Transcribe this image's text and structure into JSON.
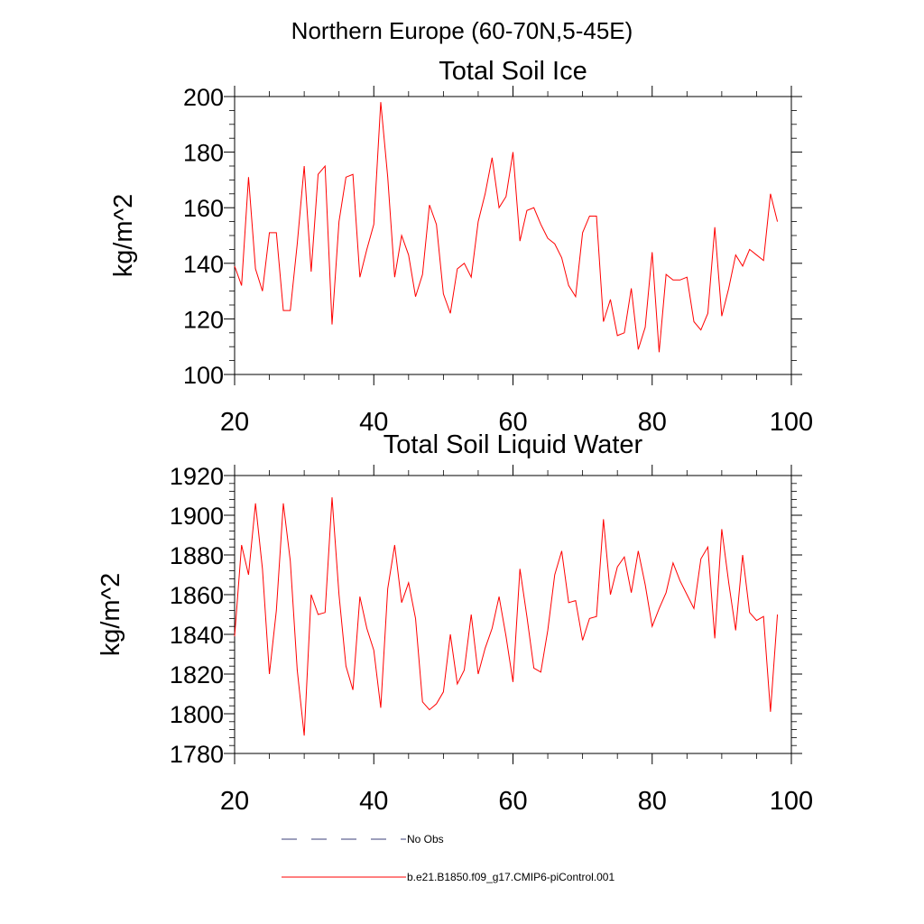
{
  "figure_title": "Northern Europe (60-70N,5-45E)",
  "chart_data": [
    {
      "type": "line",
      "title": "Total Soil Ice",
      "xlabel": "",
      "ylabel": "kg/m^2",
      "xlim": [
        20,
        100
      ],
      "ylim": [
        100,
        200
      ],
      "xticks": [
        20,
        40,
        60,
        80,
        100
      ],
      "yticks": [
        100,
        120,
        140,
        160,
        180,
        200
      ],
      "xminor_step": 5,
      "yminor_step": 4,
      "series": [
        {
          "name": "b.e21.B1850.f09_g17.CMIP6-piControl.001",
          "color": "#ff0000",
          "x": [
            20,
            21,
            22,
            23,
            24,
            25,
            26,
            27,
            28,
            29,
            30,
            31,
            32,
            33,
            34,
            35,
            36,
            37,
            38,
            39,
            40,
            41,
            42,
            43,
            44,
            45,
            46,
            47,
            48,
            49,
            50,
            51,
            52,
            53,
            54,
            55,
            56,
            57,
            58,
            59,
            60,
            61,
            62,
            63,
            64,
            65,
            66,
            67,
            68,
            69,
            70,
            71,
            72,
            73,
            74,
            75,
            76,
            77,
            78,
            79,
            80,
            81,
            82,
            83,
            84,
            85,
            86,
            87,
            88,
            89,
            90,
            91,
            92,
            93,
            94,
            95,
            96,
            97,
            98
          ],
          "values": [
            139,
            132,
            171,
            138,
            130,
            151,
            151,
            123,
            123,
            147,
            175,
            137,
            172,
            175,
            118,
            155,
            171,
            172,
            135,
            145,
            154,
            198,
            171,
            135,
            150,
            143,
            128,
            136,
            161,
            154,
            129,
            122,
            138,
            140,
            135,
            155,
            165,
            178,
            160,
            164,
            180,
            148,
            159,
            160,
            154,
            149,
            147,
            142,
            132,
            128,
            151,
            157,
            157,
            119,
            127,
            114,
            115,
            131,
            109,
            117,
            144,
            108,
            136,
            134,
            134,
            135,
            119,
            116,
            122,
            153,
            121,
            131,
            143,
            139,
            145,
            143,
            141,
            165,
            155
          ]
        }
      ]
    },
    {
      "type": "line",
      "title": "Total Soil Liquid Water",
      "xlabel": "",
      "ylabel": "kg/m^2",
      "xlim": [
        20,
        100
      ],
      "ylim": [
        1780,
        1920
      ],
      "xticks": [
        20,
        40,
        60,
        80,
        100
      ],
      "yticks": [
        1780,
        1800,
        1820,
        1840,
        1860,
        1880,
        1900,
        1920
      ],
      "xminor_step": 5,
      "yminor_step": 5,
      "series": [
        {
          "name": "b.e21.B1850.f09_g17.CMIP6-piControl.001",
          "color": "#ff0000",
          "x": [
            20,
            21,
            22,
            23,
            24,
            25,
            26,
            27,
            28,
            29,
            30,
            31,
            32,
            33,
            34,
            35,
            36,
            37,
            38,
            39,
            40,
            41,
            42,
            43,
            44,
            45,
            46,
            47,
            48,
            49,
            50,
            51,
            52,
            53,
            54,
            55,
            56,
            57,
            58,
            59,
            60,
            61,
            62,
            63,
            64,
            65,
            66,
            67,
            68,
            69,
            70,
            71,
            72,
            73,
            74,
            75,
            76,
            77,
            78,
            79,
            80,
            81,
            82,
            83,
            84,
            85,
            86,
            87,
            88,
            89,
            90,
            91,
            92,
            93,
            94,
            95,
            96,
            97,
            98
          ],
          "values": [
            1839,
            1885,
            1870,
            1906,
            1873,
            1820,
            1852,
            1906,
            1877,
            1822,
            1789,
            1860,
            1850,
            1851,
            1909,
            1860,
            1824,
            1812,
            1859,
            1843,
            1832,
            1803,
            1863,
            1885,
            1856,
            1866,
            1848,
            1806,
            1802,
            1805,
            1811,
            1840,
            1815,
            1822,
            1850,
            1820,
            1833,
            1843,
            1859,
            1839,
            1816,
            1873,
            1849,
            1823,
            1821,
            1842,
            1870,
            1882,
            1856,
            1857,
            1837,
            1848,
            1849,
            1898,
            1860,
            1874,
            1879,
            1861,
            1882,
            1865,
            1844,
            1853,
            1861,
            1876,
            1867,
            1860,
            1853,
            1878,
            1884,
            1838,
            1893,
            1866,
            1842,
            1880,
            1851,
            1847,
            1849,
            1801,
            1850
          ]
        }
      ]
    }
  ],
  "legend": {
    "placement": "bottom-center",
    "entries": [
      {
        "label": "No Obs",
        "color": "#3b3f7a",
        "style": "dashed"
      },
      {
        "label": "b.e21.B1850.f09_g17.CMIP6-piControl.001",
        "color": "#ff0000",
        "style": "solid"
      }
    ]
  }
}
